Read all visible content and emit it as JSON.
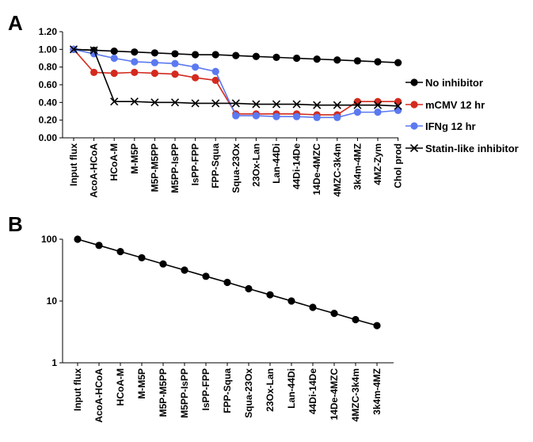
{
  "chart_data": [
    {
      "panel": "A",
      "type": "line",
      "categories": [
        "Input flux",
        "AcoA-HCoA",
        "HCoA-M",
        "M-M5P",
        "M5P-M5PP",
        "M5PP-IsPP",
        "IsPP-FPP",
        "FPP-Squa",
        "Squa-23Ox",
        "23Ox-Lan",
        "Lan-44Di",
        "44Di-14De",
        "14De-4MZC",
        "4MZC-3k4m",
        "3k4m-4MZ",
        "4MZ-Zym",
        "Chol prod"
      ],
      "ylim": [
        0,
        1.2
      ],
      "yticks": [
        "0.00",
        "0.20",
        "0.40",
        "0.60",
        "0.80",
        "1.00",
        "1.20"
      ],
      "grid": false,
      "legend_position": "right",
      "series": [
        {
          "name": "No inhibitor",
          "color": "#000000",
          "marker": "circle",
          "values": [
            1.0,
            0.99,
            0.98,
            0.97,
            0.96,
            0.95,
            0.94,
            0.94,
            0.93,
            0.92,
            0.91,
            0.9,
            0.89,
            0.88,
            0.87,
            0.86,
            0.85
          ]
        },
        {
          "name": "mCMV 12 hr",
          "color": "#d42a1e",
          "marker": "circle",
          "values": [
            1.0,
            0.74,
            0.73,
            0.74,
            0.73,
            0.72,
            0.68,
            0.65,
            0.27,
            0.27,
            0.27,
            0.27,
            0.26,
            0.26,
            0.41,
            0.41,
            0.41
          ]
        },
        {
          "name": "IFNg 12 hr",
          "color": "#5b79f0",
          "marker": "circle",
          "values": [
            1.0,
            0.95,
            0.9,
            0.86,
            0.85,
            0.84,
            0.8,
            0.75,
            0.25,
            0.25,
            0.24,
            0.24,
            0.23,
            0.23,
            0.29,
            0.29,
            0.31
          ]
        },
        {
          "name": "Statin-like inhibitor",
          "color": "#000000",
          "marker": "x",
          "values": [
            1.0,
            0.99,
            0.41,
            0.41,
            0.4,
            0.4,
            0.39,
            0.39,
            0.39,
            0.38,
            0.38,
            0.38,
            0.37,
            0.37,
            0.37,
            0.37,
            0.36
          ]
        }
      ]
    },
    {
      "panel": "B",
      "type": "line",
      "scale": "log",
      "categories": [
        "Input flux",
        "AcoA-HCoA",
        "HCoA-M",
        "M-M5P",
        "M5P-M5PP",
        "M5PP-IsPP",
        "IsPP-FPP",
        "FPP-Squa",
        "Squa-23Ox",
        "23Ox-Lan",
        "Lan-44Di",
        "44Di-14De",
        "14De-4MZC",
        "4MZC-3k4m",
        "3k4m-4MZ"
      ],
      "ylim": [
        1,
        100
      ],
      "yticks": [
        "1",
        "10",
        "100"
      ],
      "grid": false,
      "series": [
        {
          "color": "#000000",
          "marker": "circle",
          "values": [
            100,
            79.4,
            63.1,
            50.1,
            39.8,
            31.6,
            25.1,
            20.0,
            15.8,
            12.6,
            10.0,
            7.9,
            6.3,
            5.0,
            4.0
          ]
        }
      ]
    }
  ]
}
